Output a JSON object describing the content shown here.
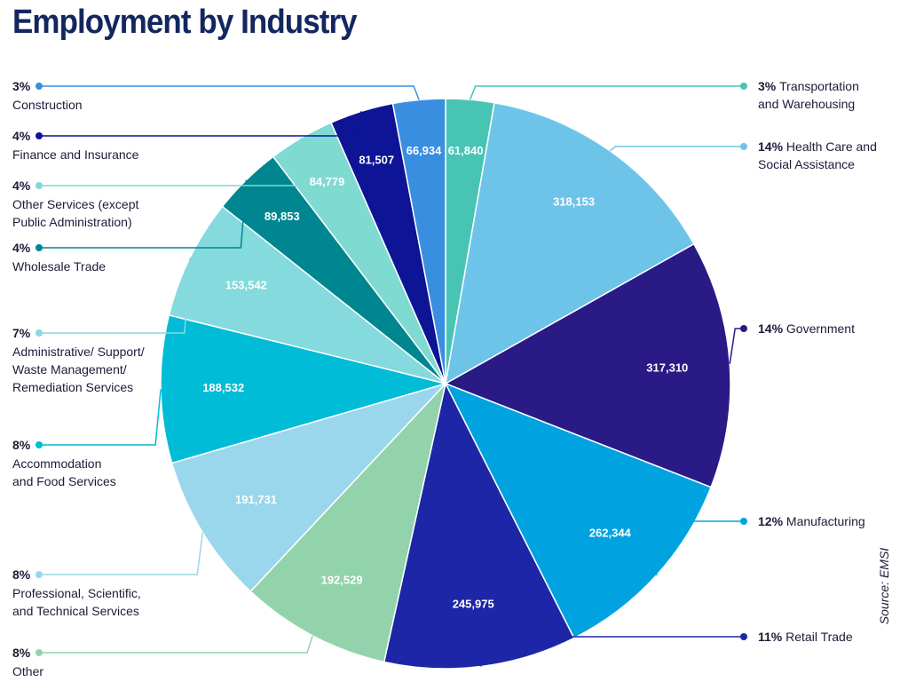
{
  "title": "Employment by Industry",
  "source": "Source: EMSI",
  "chart_data": {
    "type": "pie",
    "title": "Employment by Industry",
    "slices": [
      {
        "name": "Transportation and Warehousing",
        "name_lines": [
          "Transportation",
          "and Warehousing"
        ],
        "percent_label": "3%",
        "value": 61840,
        "value_label": "61,840",
        "color": "#48c4b4",
        "side": "right"
      },
      {
        "name": "Health Care and Social Assistance",
        "name_lines": [
          "Health Care and",
          "Social Assistance"
        ],
        "percent_label": "14%",
        "value": 318153,
        "value_label": "318,153",
        "color": "#6ec4e8",
        "side": "right"
      },
      {
        "name": "Government",
        "name_lines": [
          "Government"
        ],
        "percent_label": "14%",
        "value": 317310,
        "value_label": "317,310",
        "color": "#2a1a86",
        "side": "right"
      },
      {
        "name": "Manufacturing",
        "name_lines": [
          "Manufacturing"
        ],
        "percent_label": "12%",
        "value": 262344,
        "value_label": "262,344",
        "color": "#00a3e0",
        "side": "right"
      },
      {
        "name": "Retail Trade",
        "name_lines": [
          "Retail Trade"
        ],
        "percent_label": "11%",
        "value": 245975,
        "value_label": "245,975",
        "color": "#1d26a6",
        "side": "right"
      },
      {
        "name": "Other",
        "name_lines": [
          "Other"
        ],
        "percent_label": "8%",
        "value": 192529,
        "value_label": "192,529",
        "color": "#92d3ab",
        "side": "left"
      },
      {
        "name": "Professional, Scientific, and Technical Services",
        "name_lines": [
          "Professional, Scientific,",
          "and Technical Services"
        ],
        "percent_label": "8%",
        "value": 191731,
        "value_label": "191,731",
        "color": "#9ad6ec",
        "side": "left"
      },
      {
        "name": "Accommodation and Food Services",
        "name_lines": [
          "Accommodation",
          "and Food Services"
        ],
        "percent_label": "8%",
        "value": 188532,
        "value_label": "188,532",
        "color": "#00bcd6",
        "side": "left"
      },
      {
        "name": "Administrative/ Support/ Waste Management/ Remediation Services",
        "name_lines": [
          "Administrative/ Support/",
          "Waste Management/",
          "Remediation Services"
        ],
        "percent_label": "7%",
        "value": 153542,
        "value_label": "153,542",
        "color": "#84dadd",
        "side": "left"
      },
      {
        "name": "Wholesale Trade",
        "name_lines": [
          "Wholesale Trade"
        ],
        "percent_label": "4%",
        "value": 89853,
        "value_label": "89,853",
        "color": "#008690",
        "side": "left"
      },
      {
        "name": "Other Services (except Public Administration)",
        "name_lines": [
          "Other Services (except",
          "Public Administration)"
        ],
        "percent_label": "4%",
        "value": 84779,
        "value_label": "84,779",
        "color": "#7fdad2",
        "side": "left"
      },
      {
        "name": "Finance and Insurance",
        "name_lines": [
          "Finance and Insurance"
        ],
        "percent_label": "4%",
        "value": 81507,
        "value_label": "81,507",
        "color": "#0d1496",
        "side": "left"
      },
      {
        "name": "Construction",
        "name_lines": [
          "Construction"
        ],
        "percent_label": "3%",
        "value": 66934,
        "value_label": "66,934",
        "color": "#3a8ee0",
        "side": "left"
      }
    ]
  }
}
